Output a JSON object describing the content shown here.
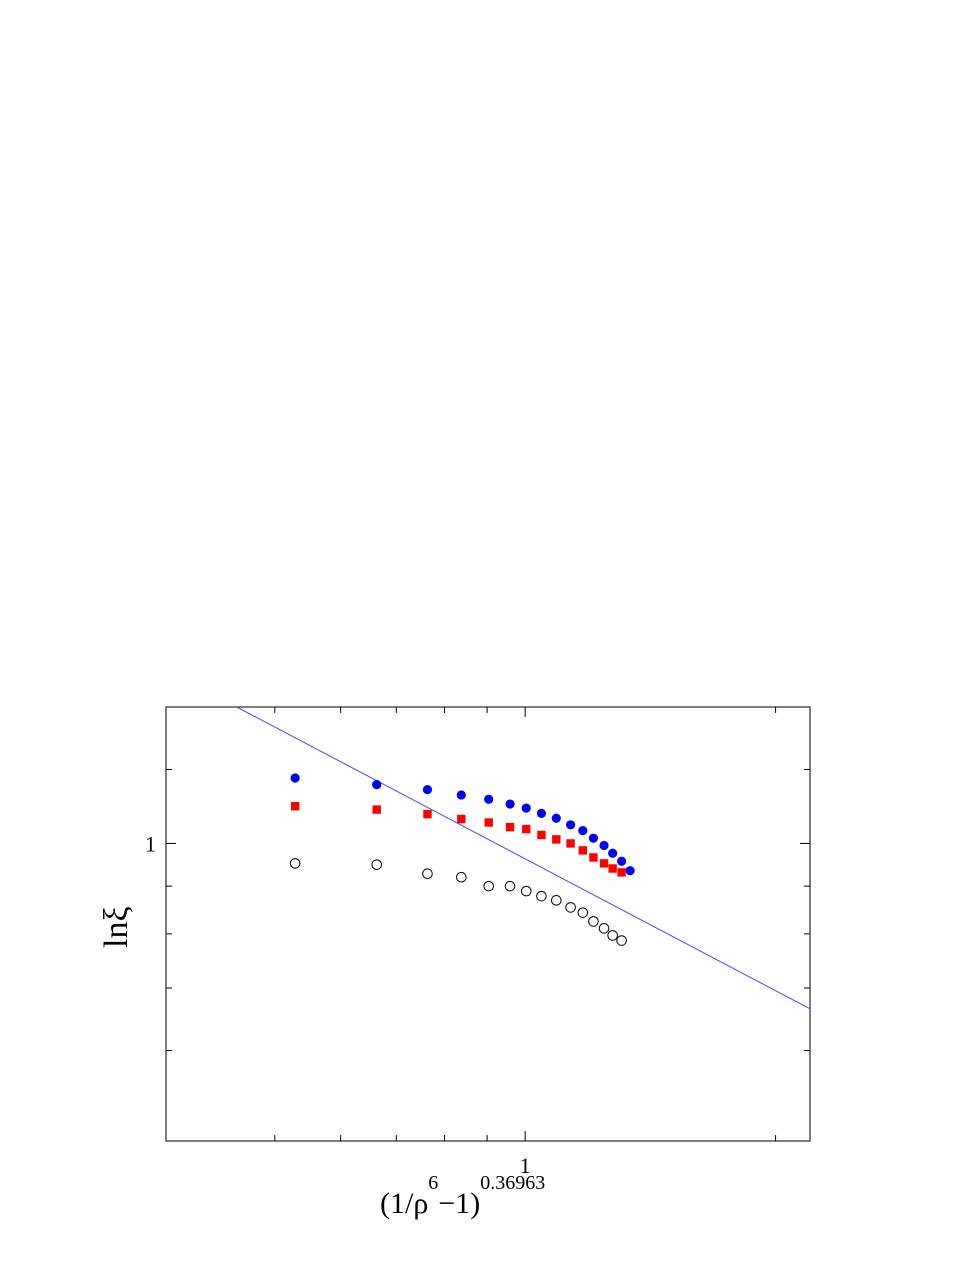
{
  "chart_data": {
    "type": "scatter",
    "x_scale": "log",
    "y_scale": "log",
    "xlim": [
      0.37,
      2.2
    ],
    "ylim": [
      0.48,
      1.4
    ],
    "xlabel": {
      "base": "(1/ρ",
      "exp1": "6",
      "mid": "−1)",
      "exp2": "0.36963"
    },
    "ylabel": {
      "main": "lnξ"
    },
    "x_tick_labels": [
      {
        "value": 1,
        "label": "1"
      }
    ],
    "y_tick_labels": [
      {
        "value": 1,
        "label": "1"
      }
    ],
    "x_minor_ticks": [
      0.5,
      0.6,
      0.7,
      0.8,
      0.9,
      1,
      2
    ],
    "y_minor_ticks": [
      0.6,
      0.7,
      0.8,
      0.9,
      1,
      1.2
    ],
    "legend": "none",
    "grid": false,
    "series": [
      {
        "marker": "filled-circle",
        "color": "#0000ee",
        "points": [
          [
            0.529,
            1.175
          ],
          [
            0.663,
            1.156
          ],
          [
            0.763,
            1.142
          ],
          [
            0.838,
            1.127
          ],
          [
            0.904,
            1.115
          ],
          [
            0.959,
            1.102
          ],
          [
            1.003,
            1.091
          ],
          [
            1.046,
            1.077
          ],
          [
            1.09,
            1.064
          ],
          [
            1.134,
            1.047
          ],
          [
            1.173,
            1.032
          ],
          [
            1.208,
            1.013
          ],
          [
            1.244,
            0.995
          ],
          [
            1.274,
            0.976
          ],
          [
            1.306,
            0.957
          ],
          [
            1.337,
            0.935
          ]
        ]
      },
      {
        "marker": "filled-square",
        "color": "#ff0000",
        "points": [
          [
            0.529,
            1.096
          ],
          [
            0.663,
            1.087
          ],
          [
            0.763,
            1.075
          ],
          [
            0.838,
            1.062
          ],
          [
            0.904,
            1.053
          ],
          [
            0.959,
            1.041
          ],
          [
            1.003,
            1.036
          ],
          [
            1.046,
            1.021
          ],
          [
            1.09,
            1.01
          ],
          [
            1.134,
            1.0
          ],
          [
            1.173,
            0.983
          ],
          [
            1.208,
            0.966
          ],
          [
            1.244,
            0.952
          ],
          [
            1.274,
            0.94
          ],
          [
            1.306,
            0.931
          ]
        ]
      },
      {
        "marker": "open-circle",
        "color": "#000000",
        "points": [
          [
            0.529,
            0.952
          ],
          [
            0.663,
            0.949
          ],
          [
            0.763,
            0.928
          ],
          [
            0.838,
            0.92
          ],
          [
            0.904,
            0.9
          ],
          [
            0.959,
            0.9
          ],
          [
            1.003,
            0.889
          ],
          [
            1.046,
            0.878
          ],
          [
            1.09,
            0.869
          ],
          [
            1.134,
            0.854
          ],
          [
            1.173,
            0.843
          ],
          [
            1.208,
            0.825
          ],
          [
            1.244,
            0.811
          ],
          [
            1.274,
            0.797
          ],
          [
            1.306,
            0.787
          ]
        ]
      }
    ],
    "lines": [
      {
        "color": "#4444ff",
        "points": [
          [
            0.45,
            1.4
          ],
          [
            2.2,
            0.665
          ]
        ]
      }
    ]
  }
}
